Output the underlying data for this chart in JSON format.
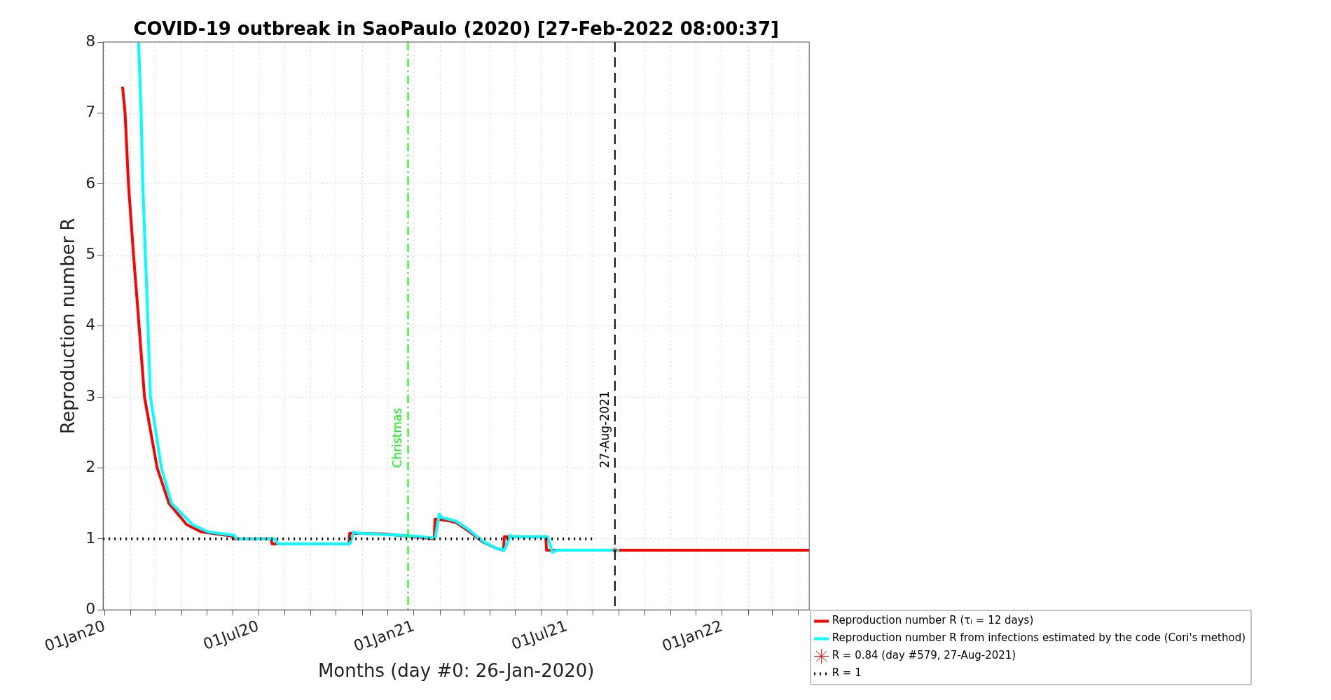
{
  "chart_data": {
    "type": "line",
    "title": "COVID-19 outbreak in SaoPaulo (2020) [27-Feb-2022 08:00:37]",
    "xlabel": "Months (day #0: 26-Jan-2020)",
    "ylabel": "Reproduction number R",
    "xlim": [
      "2019-12-30",
      "2022-04-14"
    ],
    "xticks": [
      {
        "value": "2020-01-01",
        "label": "01Jan20"
      },
      {
        "value": "2020-02-01",
        "label": null
      },
      {
        "value": "2020-03-01",
        "label": null
      },
      {
        "value": "2020-04-01",
        "label": null
      },
      {
        "value": "2020-05-01",
        "label": null
      },
      {
        "value": "2020-06-01",
        "label": null
      },
      {
        "value": "2020-07-01",
        "label": "01Jul20"
      },
      {
        "value": "2020-08-01",
        "label": null
      },
      {
        "value": "2020-09-01",
        "label": null
      },
      {
        "value": "2020-10-01",
        "label": null
      },
      {
        "value": "2020-11-01",
        "label": null
      },
      {
        "value": "2020-12-01",
        "label": null
      },
      {
        "value": "2021-01-01",
        "label": "01Jan21"
      },
      {
        "value": "2021-02-01",
        "label": null
      },
      {
        "value": "2021-03-01",
        "label": null
      },
      {
        "value": "2021-04-01",
        "label": null
      },
      {
        "value": "2021-05-01",
        "label": null
      },
      {
        "value": "2021-06-01",
        "label": null
      },
      {
        "value": "2021-07-01",
        "label": "01Jul21"
      },
      {
        "value": "2021-08-01",
        "label": null
      },
      {
        "value": "2021-09-01",
        "label": null
      },
      {
        "value": "2021-10-01",
        "label": null
      },
      {
        "value": "2021-11-01",
        "label": null
      },
      {
        "value": "2021-12-01",
        "label": null
      },
      {
        "value": "2022-01-01",
        "label": "01Jan22"
      },
      {
        "value": "2022-02-01",
        "label": null
      },
      {
        "value": "2022-03-01",
        "label": null
      },
      {
        "value": "2022-04-01",
        "label": null
      }
    ],
    "ylim": [
      0,
      8
    ],
    "yticks": [
      0,
      1,
      2,
      3,
      4,
      5,
      6,
      7,
      8
    ],
    "grid": true,
    "legend": "bottom right",
    "series": [
      {
        "name": "Reproduction number R (τᵢ = 12 days)",
        "color": "#ff0000",
        "line_style": "solid",
        "x": [
          "2020-01-22",
          "2020-01-25",
          "2020-01-29",
          "2020-02-04",
          "2020-02-08",
          "2020-02-17",
          "2020-03-03",
          "2020-03-17",
          "2020-04-07",
          "2020-04-24",
          "2020-05-30",
          "2020-05-31",
          "2020-06-01",
          "2020-07-16",
          "2020-07-17",
          "2020-10-16",
          "2020-10-17",
          "2020-11-26",
          "2021-01-01",
          "2021-01-25",
          "2021-01-26",
          "2021-02-09",
          "2021-02-20",
          "2021-03-08",
          "2021-03-23",
          "2021-04-08",
          "2021-04-17",
          "2021-04-18",
          "2021-06-06",
          "2021-06-07",
          "2022-04-14"
        ],
        "values": [
          7.37,
          7.0,
          6.0,
          5.0,
          4.4,
          3.0,
          2.0,
          1.5,
          1.2,
          1.1,
          1.04,
          1.04,
          1.0,
          1.0,
          0.93,
          0.93,
          1.08,
          1.07,
          1.03,
          1.0,
          1.28,
          1.26,
          1.23,
          1.1,
          0.96,
          0.87,
          0.84,
          1.03,
          1.03,
          0.84,
          0.84
        ]
      },
      {
        "name": "Reproduction number R from infections estimated by the code (Cori's method)",
        "color": "#00ffff",
        "line_style": "solid",
        "x": [
          "2020-02-10",
          "2020-02-13",
          "2020-02-15",
          "2020-02-18",
          "2020-02-20",
          "2020-02-24",
          "2020-03-08",
          "2020-03-20",
          "2020-04-14",
          "2020-05-02",
          "2020-06-02",
          "2020-06-05",
          "2020-07-20",
          "2020-07-24",
          "2020-10-17",
          "2020-10-22",
          "2020-10-27",
          "2021-01-01",
          "2021-01-26",
          "2021-01-31",
          "2021-02-03",
          "2021-02-20",
          "2021-03-08",
          "2021-03-23",
          "2021-04-08",
          "2021-04-18",
          "2021-04-25",
          "2021-04-29",
          "2021-06-08",
          "2021-06-14",
          "2021-06-19",
          "2021-09-01"
        ],
        "values": [
          8.0,
          7.0,
          6.0,
          5.0,
          4.4,
          3.0,
          2.0,
          1.5,
          1.2,
          1.1,
          1.05,
          1.0,
          1.0,
          0.93,
          0.93,
          1.1,
          1.08,
          1.04,
          1.01,
          1.35,
          1.3,
          1.25,
          1.12,
          0.97,
          0.87,
          0.84,
          1.05,
          1.03,
          1.03,
          0.81,
          0.84,
          0.84
        ]
      },
      {
        "name": "R = 0.84 (day #579, 27-Aug-2021)",
        "type": "scatter",
        "marker": "cross",
        "color": "#ff0000",
        "x": [
          "2021-08-27"
        ],
        "values": [
          0.84
        ]
      },
      {
        "name": "R = 1",
        "color": "#000000",
        "line_style": "dotted",
        "x": [
          "2019-12-30",
          "2021-07-31"
        ],
        "values": [
          1,
          1
        ]
      }
    ],
    "ref_lines": [
      {
        "axis": "x",
        "value": "2020-12-25",
        "label": "Christmas",
        "color": "#00ff00",
        "line_style": "dashed"
      },
      {
        "axis": "x",
        "value": "2021-08-27",
        "label": "27-Aug-2021",
        "color": "#000000",
        "line_style": "dashed"
      }
    ]
  }
}
